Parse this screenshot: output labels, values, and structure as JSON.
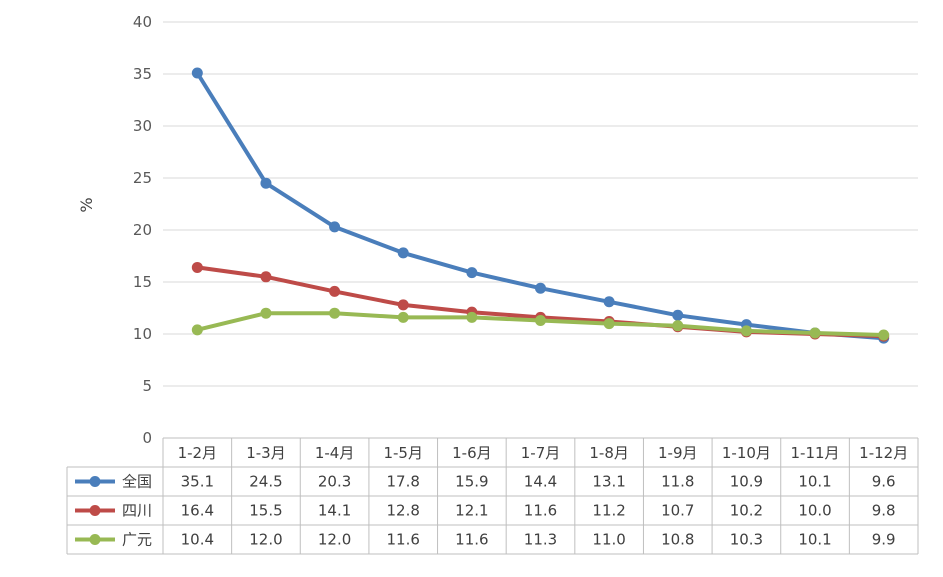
{
  "chart_data": {
    "type": "line",
    "title": "",
    "xlabel": "",
    "ylabel": "%",
    "ylim": [
      0,
      40
    ],
    "yticks": [
      0,
      5,
      10,
      15,
      20,
      25,
      30,
      35,
      40
    ],
    "grid": true,
    "legend": "data-table",
    "categories": [
      "1-2月",
      "1-3月",
      "1-4月",
      "1-5月",
      "1-6月",
      "1-7月",
      "1-8月",
      "1-9月",
      "1-10月",
      "1-11月",
      "1-12月"
    ],
    "series": [
      {
        "name": "全国",
        "color": "#4a7ebb",
        "values": [
          35.1,
          24.5,
          20.3,
          17.8,
          15.9,
          14.4,
          13.1,
          11.8,
          10.9,
          10.1,
          9.6
        ],
        "labels": [
          "35.1",
          "24.5",
          "20.3",
          "17.8",
          "15.9",
          "14.4",
          "13.1",
          "11.8",
          "10.9",
          "10.1",
          "9.6"
        ]
      },
      {
        "name": "四川",
        "color": "#be4b48",
        "values": [
          16.4,
          15.5,
          14.1,
          12.8,
          12.1,
          11.6,
          11.2,
          10.7,
          10.2,
          10.0,
          9.8
        ],
        "labels": [
          "16.4",
          "15.5",
          "14.1",
          "12.8",
          "12.1",
          "11.6",
          "11.2",
          "10.7",
          "10.2",
          "10.0",
          "9.8"
        ]
      },
      {
        "name": "广元",
        "color": "#98b954",
        "values": [
          10.4,
          12.0,
          12.0,
          11.6,
          11.6,
          11.3,
          11.0,
          10.8,
          10.3,
          10.1,
          9.9
        ],
        "labels": [
          "10.4",
          "12.0",
          "12.0",
          "11.6",
          "11.6",
          "11.3",
          "11.0",
          "10.8",
          "10.3",
          "10.1",
          "9.9"
        ]
      }
    ]
  }
}
